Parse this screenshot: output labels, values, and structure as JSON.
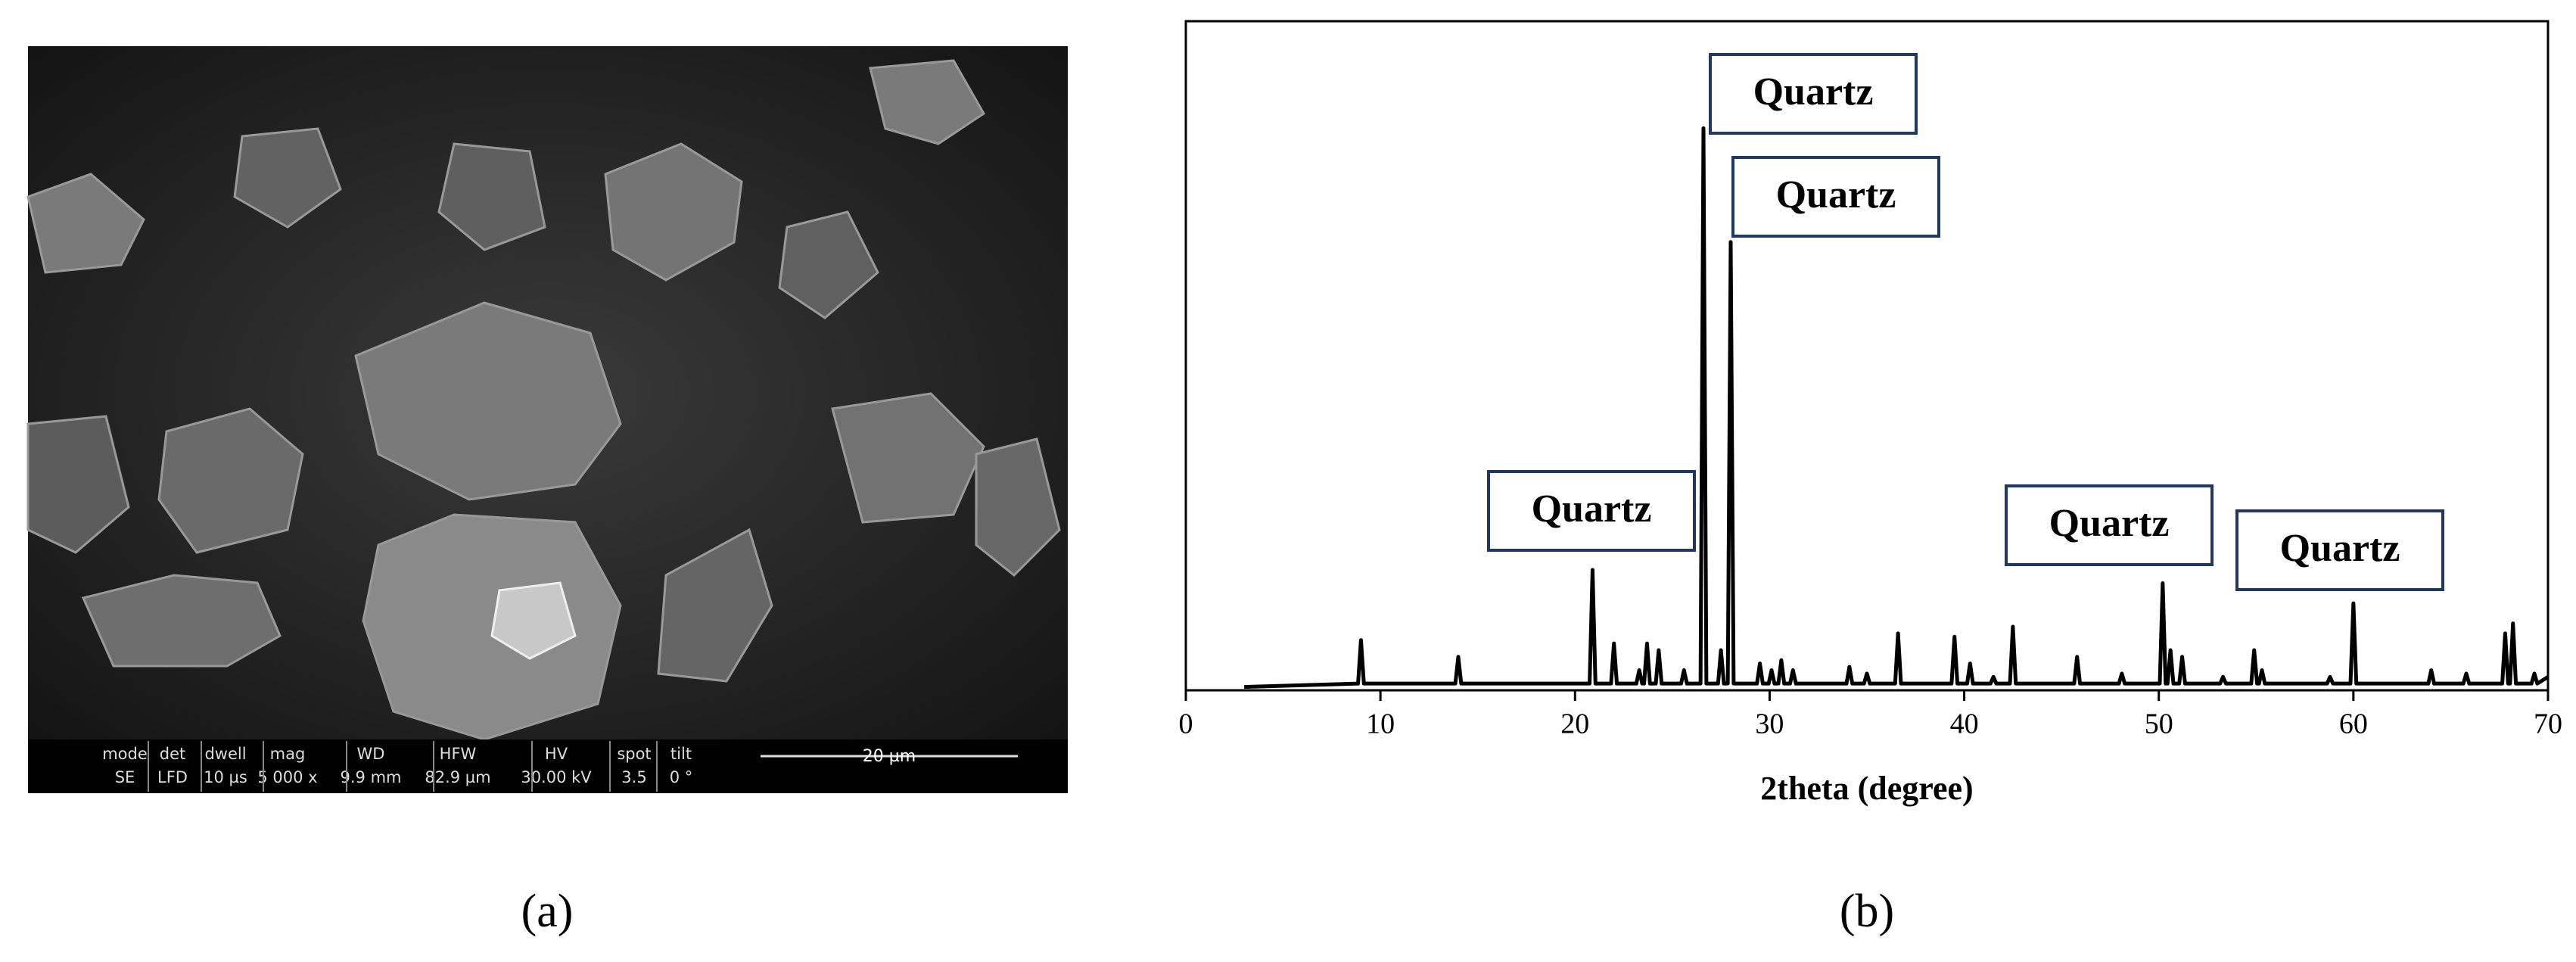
{
  "sem_panel": {
    "label": "(a)",
    "databar_headers": [
      "mode",
      "det",
      "dwell",
      "mag",
      "WD",
      "HFW",
      "HV",
      "spot",
      "tilt"
    ],
    "databar_values": [
      "SE",
      "LFD",
      "10 µs",
      "5 000 x",
      "9.9 mm",
      "82.9 µm",
      "30.00 kV",
      "3.5",
      "0 °"
    ],
    "scale_bar": "20 µm"
  },
  "chart_data": {
    "type": "line",
    "label": "(b)",
    "xlabel": "2theta (degree)",
    "color": "#000000",
    "x": [
      3,
      8.85,
      9.0,
      9.15,
      13.85,
      14.0,
      14.15,
      20.75,
      20.9,
      21.05,
      21.85,
      22.0,
      22.15,
      23.15,
      23.3,
      23.45,
      23.55,
      23.7,
      23.85,
      24.15,
      24.3,
      24.45,
      25.45,
      25.6,
      25.75,
      26.45,
      26.6,
      26.75,
      27.35,
      27.5,
      27.65,
      27.85,
      28.0,
      28.15,
      29.35,
      29.5,
      29.65,
      29.95,
      30.1,
      30.25,
      30.45,
      30.6,
      30.75,
      31.05,
      31.2,
      31.35,
      33.95,
      34.1,
      34.25,
      34.85,
      35.0,
      35.15,
      36.45,
      36.6,
      36.75,
      39.35,
      39.5,
      39.65,
      40.15,
      40.3,
      40.45,
      41.35,
      41.5,
      41.65,
      42.35,
      42.5,
      42.65,
      45.65,
      45.8,
      45.95,
      47.95,
      48.1,
      48.25,
      50.05,
      50.2,
      50.35,
      50.45,
      50.6,
      50.75,
      51.05,
      51.2,
      51.35,
      53.15,
      53.3,
      53.45,
      54.75,
      54.9,
      55.05,
      55.15,
      55.3,
      55.45,
      58.65,
      58.8,
      58.95,
      59.85,
      60.0,
      60.15,
      63.85,
      64.0,
      64.15,
      65.65,
      65.8,
      65.95,
      67.65,
      67.8,
      67.95,
      68.05,
      68.2,
      68.35,
      69.15,
      69.3,
      69.45,
      70
    ],
    "values": [
      0.5,
      1,
      7.5,
      1,
      1,
      5,
      1,
      1,
      18,
      1,
      1,
      7,
      1,
      1,
      3,
      1,
      1,
      7,
      1,
      1,
      6,
      1,
      1,
      3,
      1,
      1,
      84,
      1,
      1,
      6,
      1,
      1,
      67,
      1,
      1,
      4,
      1,
      1,
      3,
      1,
      1,
      4.5,
      1,
      1,
      3,
      1,
      1,
      3.5,
      1,
      1,
      2.5,
      1,
      1,
      8.5,
      1,
      1,
      8,
      1,
      1,
      4,
      1,
      1,
      2,
      1,
      1,
      9.5,
      1,
      1,
      5,
      1,
      1,
      2.5,
      1,
      1,
      16,
      1,
      1,
      6,
      1,
      1,
      5,
      1,
      1,
      2,
      1,
      1,
      6,
      1,
      1,
      3,
      1,
      1,
      2,
      1,
      1,
      13,
      1,
      1,
      3,
      1,
      1,
      2.5,
      1,
      1,
      8.5,
      1,
      1,
      10,
      1,
      1,
      2.5,
      1,
      2
    ],
    "xlim": [
      0,
      70
    ],
    "ylim": [
      0,
      100
    ],
    "xticks": [
      0,
      10,
      20,
      30,
      40,
      50,
      60,
      70
    ],
    "annotations": [
      "Quartz",
      "Quartz",
      "Quartz",
      "Quartz",
      "Quartz"
    ]
  }
}
